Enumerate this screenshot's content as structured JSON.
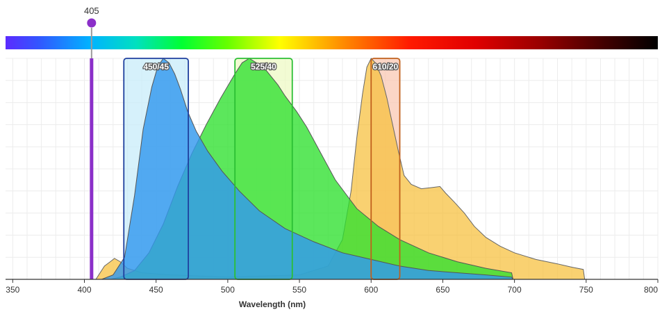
{
  "chart_data": {
    "type": "area",
    "title": "",
    "xlabel": "Wavelength (nm)",
    "ylabel": "",
    "xlim": [
      345,
      800
    ],
    "ylim": [
      0,
      100
    ],
    "xticks": [
      350,
      400,
      450,
      500,
      550,
      600,
      650,
      700,
      750,
      800
    ],
    "grid": true,
    "spectrum_bar": {
      "range": [
        345,
        800
      ]
    },
    "laser": {
      "label": "405",
      "wavelength": 405,
      "color": "#8b2fc9"
    },
    "filters": [
      {
        "label": "450/45",
        "center": 450,
        "width": 45,
        "fill": "#c8ecf9",
        "stroke": "#1f3f9e"
      },
      {
        "label": "525/40",
        "center": 525,
        "width": 40,
        "fill": "#eef9c4",
        "stroke": "#2bbf33"
      },
      {
        "label": "610/20",
        "center": 610,
        "width": 20,
        "fill": "#f9c8b3",
        "stroke": "#c0601c"
      }
    ],
    "series": [
      {
        "fill": "#f7bf3a",
        "opacity": 0.72,
        "stroke": "#666666",
        "x": [
          408,
          414,
          418,
          421,
          425,
          430,
          440,
          460,
          500,
          550,
          570,
          580,
          586,
          590,
          594,
          597,
          600,
          603,
          607,
          611,
          615,
          619,
          623,
          628,
          635,
          642,
          648,
          652,
          658,
          665,
          672,
          680,
          690,
          700,
          715,
          730,
          740,
          748,
          749
        ],
        "y": [
          0,
          6,
          8,
          9.5,
          8,
          5,
          3,
          2,
          1,
          2,
          6,
          18,
          40,
          64,
          84,
          96,
          100,
          98,
          92,
          82,
          70,
          58,
          47,
          43,
          41,
          41.5,
          42,
          39,
          35,
          30,
          24,
          19,
          15,
          12,
          9,
          7,
          5.5,
          4.5,
          0
        ]
      },
      {
        "fill": "#2ee02e",
        "opacity": 0.78,
        "stroke": "#555555",
        "x": [
          418,
          425,
          435,
          445,
          455,
          465,
          475,
          485,
          495,
          505,
          510,
          515,
          520,
          525,
          530,
          535,
          540,
          548,
          555,
          565,
          575,
          590,
          605,
          620,
          640,
          660,
          680,
          698,
          699
        ],
        "y": [
          0,
          1,
          4,
          12,
          25,
          42,
          57,
          70,
          82,
          93,
          98,
          100,
          98,
          96,
          92,
          88,
          83,
          76,
          69,
          57,
          45,
          32,
          24,
          18,
          12,
          8,
          5,
          3,
          0
        ]
      },
      {
        "fill": "#3399ee",
        "opacity": 0.82,
        "stroke": "#555555",
        "x": [
          412,
          420,
          428,
          435,
          441,
          447,
          451,
          455,
          459,
          463,
          467,
          472,
          478,
          486,
          496,
          508,
          522,
          540,
          560,
          580,
          600,
          620,
          640,
          660,
          680,
          698,
          699
        ],
        "y": [
          0,
          2,
          10,
          38,
          68,
          87,
          96,
          100,
          98,
          93,
          86,
          76,
          67,
          58,
          49,
          40,
          31,
          23,
          17,
          12,
          9,
          6,
          4,
          3,
          2,
          1,
          0
        ]
      }
    ]
  }
}
